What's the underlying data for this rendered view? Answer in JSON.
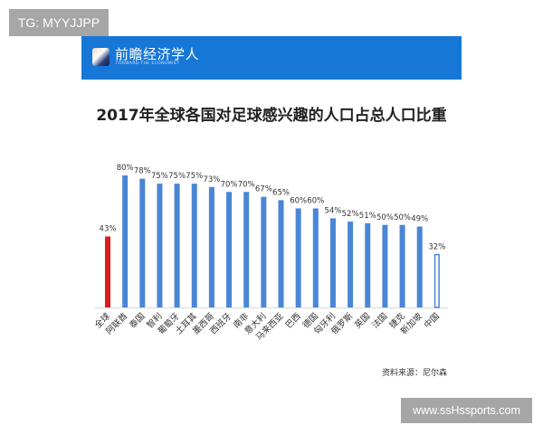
{
  "watermark_top": "TG: MYYJJPP",
  "watermark_bottom": "www.ssHssports.com",
  "banner": {
    "logo_cn": "前瞻经济学人",
    "logo_en": "FORWARD-THE ECONOMIST"
  },
  "source": "资料来源：尼尔森",
  "colors": {
    "bar": "#4a86d6",
    "highlight": "#d81e1e",
    "outline_bar": "#4a86d6",
    "banner": "#1677d6"
  },
  "chart_data": {
    "type": "bar",
    "title": "2017年全球各国对足球感兴趣的人口占总人口比重",
    "xlabel": "",
    "ylabel": "",
    "ylim": [
      0,
      100
    ],
    "grid": false,
    "categories": [
      "全球",
      "阿联酋",
      "泰国",
      "智利",
      "葡萄牙",
      "土耳其",
      "墨西哥",
      "西班牙",
      "南非",
      "意大利",
      "马来西亚",
      "巴西",
      "德国",
      "匈牙利",
      "俄罗斯",
      "英国",
      "法国",
      "捷克",
      "新加坡",
      "中国"
    ],
    "values": [
      43,
      80,
      78,
      75,
      75,
      75,
      73,
      70,
      70,
      67,
      65,
      60,
      60,
      54,
      52,
      51,
      50,
      50,
      49,
      32
    ],
    "data_labels": [
      "43%",
      "80%",
      "78%",
      "75%",
      "75%",
      "75%",
      "73%",
      "70%",
      "70%",
      "67%",
      "65%",
      "60%",
      "60%",
      "54%",
      "52%",
      "51%",
      "50%",
      "50%",
      "49%",
      "32%"
    ],
    "highlight": {
      "全球": "red-filled",
      "中国": "outlined"
    }
  }
}
